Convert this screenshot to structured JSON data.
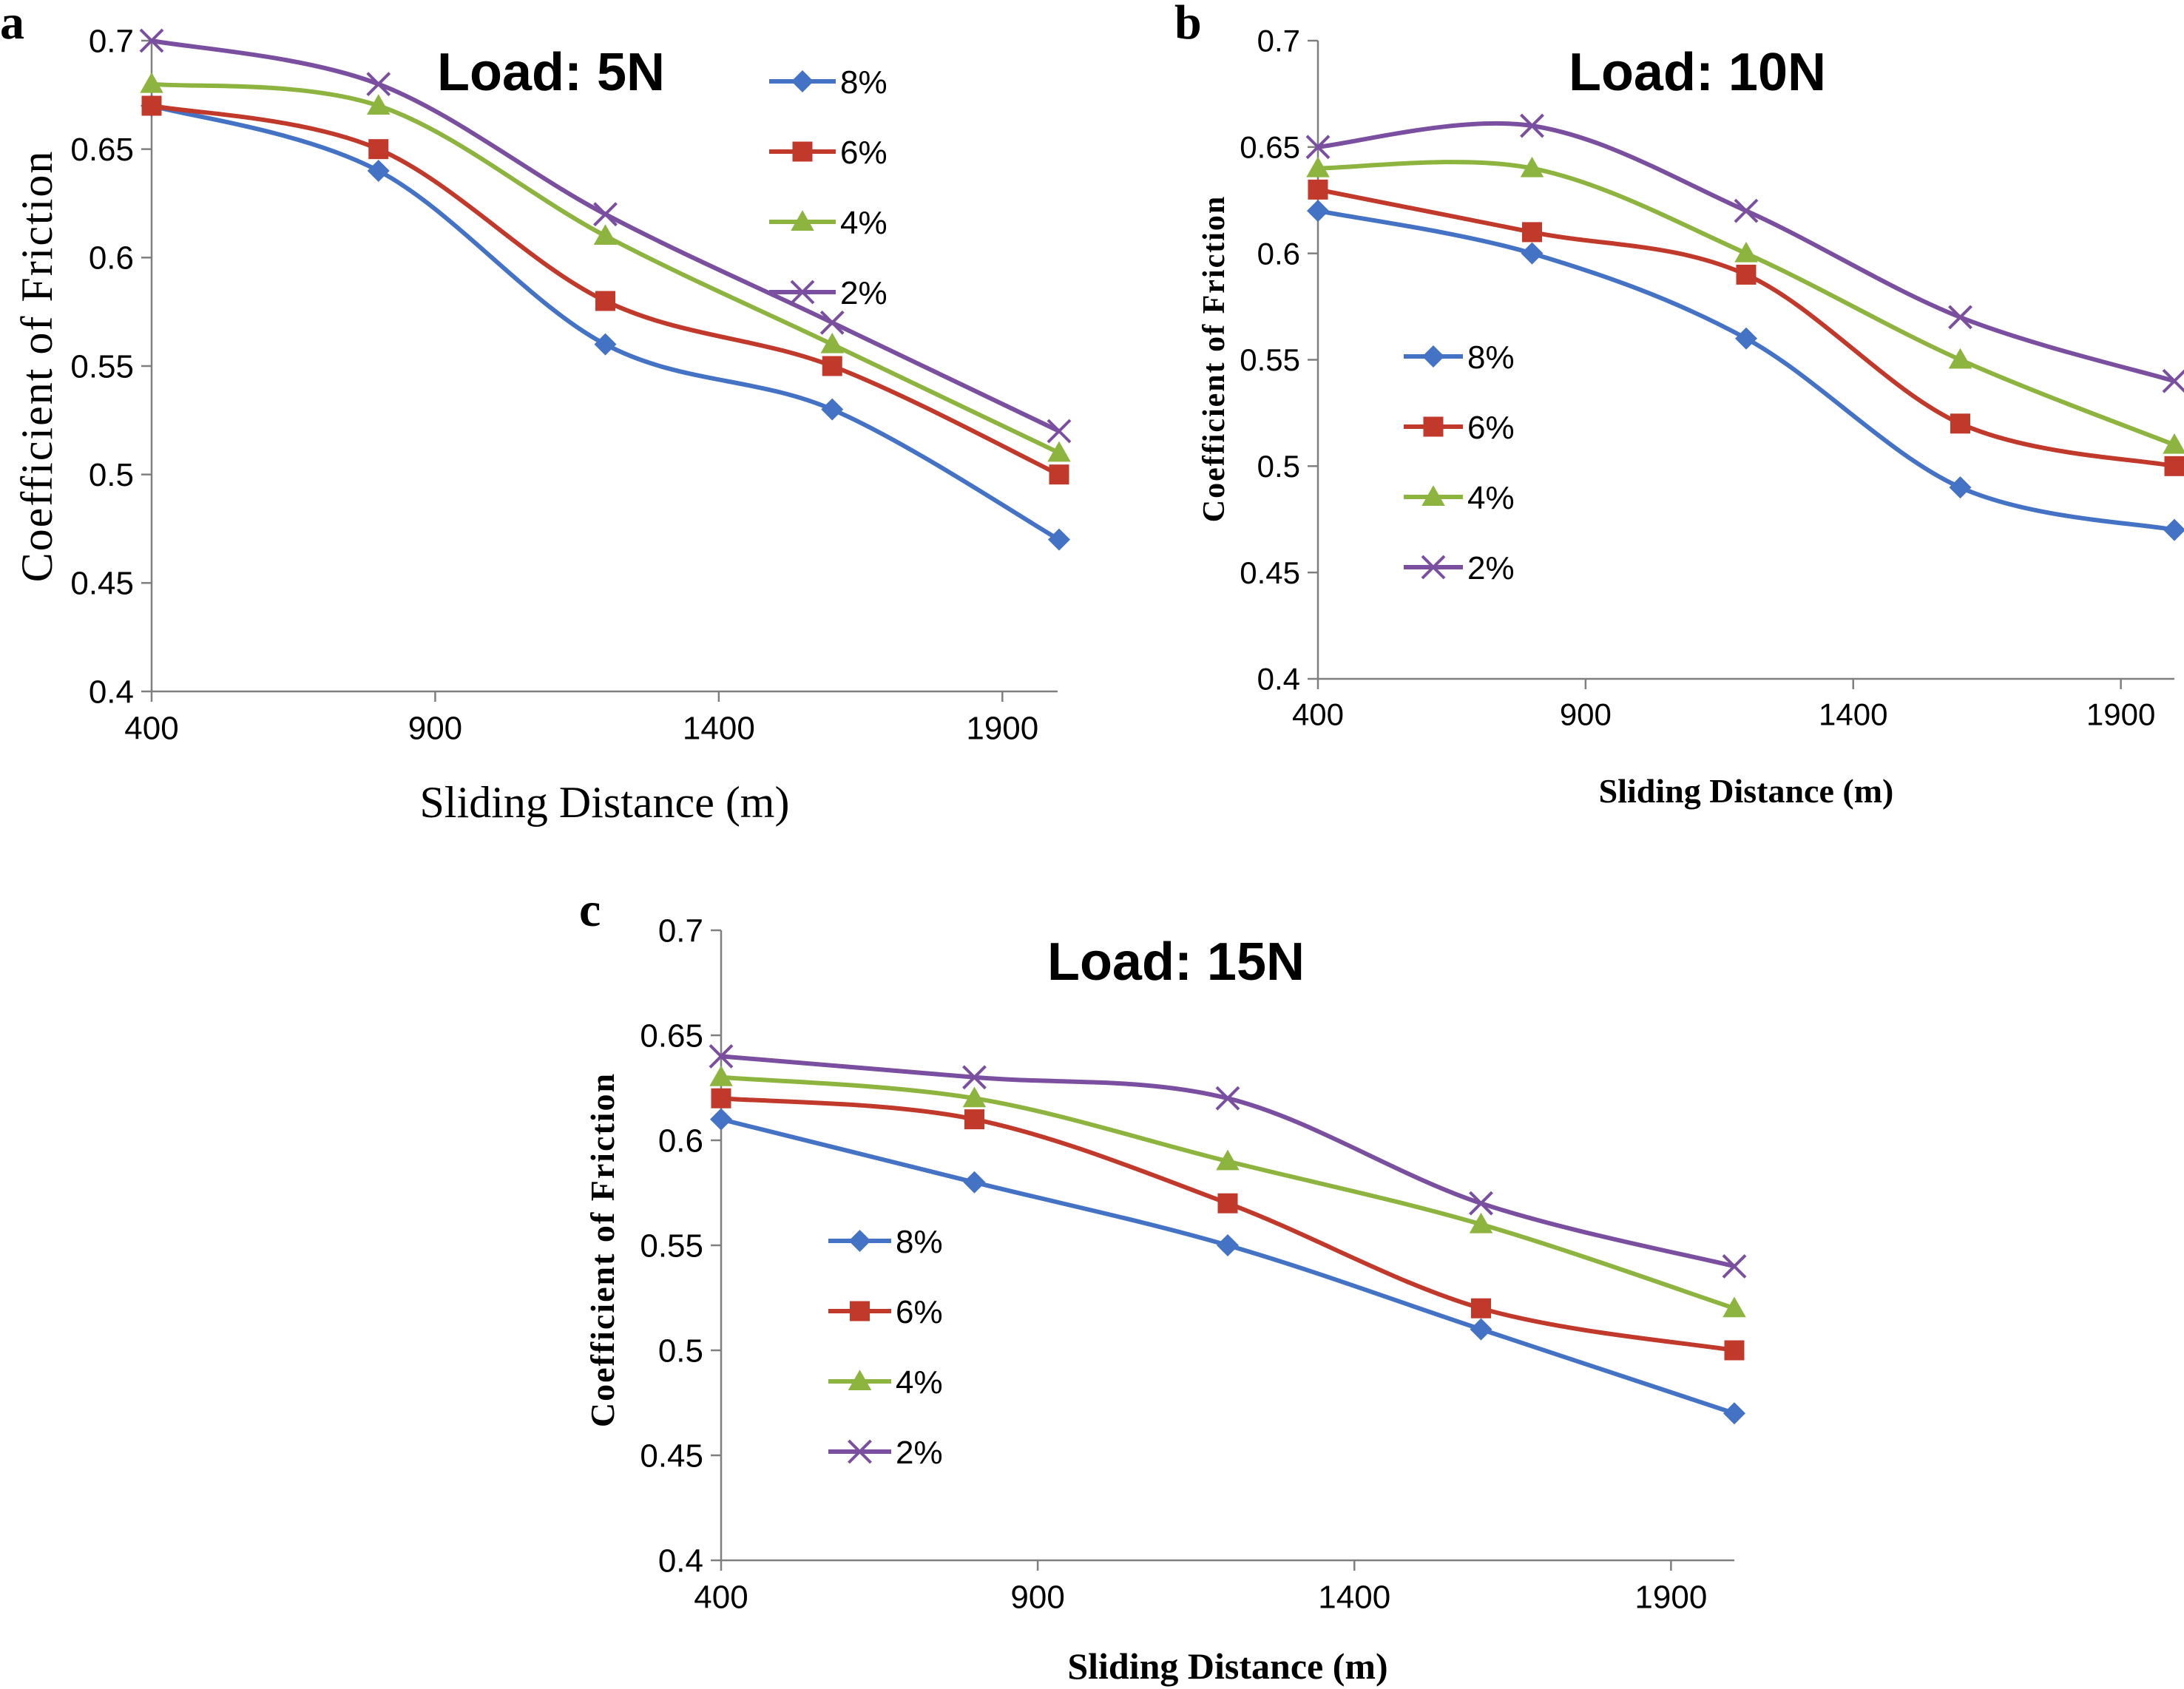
{
  "chart_data": [
    {
      "panel_label": "a",
      "type": "line",
      "title": "Load: 5N",
      "xlabel": "Sliding Distance (m)",
      "ylabel": "Coefficient of Friction",
      "x": [
        400,
        800,
        1200,
        1600,
        2000
      ],
      "xlim": [
        400,
        2000
      ],
      "ylim": [
        0.4,
        0.7
      ],
      "xticks": [
        "400",
        "900",
        "1400",
        "1900"
      ],
      "yticks": [
        "0.4",
        "0.45",
        "0.5",
        "0.55",
        "0.6",
        "0.65",
        "0.7"
      ],
      "legend_position": "top-right",
      "grid": false,
      "series": [
        {
          "name": "8%",
          "values": [
            0.67,
            0.64,
            0.56,
            0.53,
            0.47
          ],
          "color": "#4472C4",
          "marker": "diamond"
        },
        {
          "name": "6%",
          "values": [
            0.67,
            0.65,
            0.58,
            0.55,
            0.5
          ],
          "color": "#C0392B",
          "marker": "square"
        },
        {
          "name": "4%",
          "values": [
            0.68,
            0.67,
            0.61,
            0.56,
            0.51
          ],
          "color": "#8DB43E",
          "marker": "triangle"
        },
        {
          "name": "2%",
          "values": [
            0.7,
            0.68,
            0.62,
            0.57,
            0.52
          ],
          "color": "#7B4FA0",
          "marker": "x"
        }
      ]
    },
    {
      "panel_label": "b",
      "type": "line",
      "title": "Load: 10N",
      "xlabel": "Sliding Distance (m)",
      "ylabel": "Coefficient of Friction",
      "x": [
        400,
        800,
        1200,
        1600,
        2000
      ],
      "xlim": [
        400,
        2000
      ],
      "ylim": [
        0.4,
        0.7
      ],
      "xticks": [
        "400",
        "900",
        "1400",
        "1900"
      ],
      "yticks": [
        "0.4",
        "0.45",
        "0.5",
        "0.55",
        "0.6",
        "0.65",
        "0.7"
      ],
      "legend_position": "middle-left",
      "grid": false,
      "series": [
        {
          "name": "8%",
          "values": [
            0.62,
            0.6,
            0.56,
            0.49,
            0.47
          ],
          "color": "#4472C4",
          "marker": "diamond"
        },
        {
          "name": "6%",
          "values": [
            0.63,
            0.61,
            0.59,
            0.52,
            0.5
          ],
          "color": "#C0392B",
          "marker": "square"
        },
        {
          "name": "4%",
          "values": [
            0.64,
            0.64,
            0.6,
            0.55,
            0.51
          ],
          "color": "#8DB43E",
          "marker": "triangle"
        },
        {
          "name": "2%",
          "values": [
            0.65,
            0.66,
            0.62,
            0.57,
            0.54
          ],
          "color": "#7B4FA0",
          "marker": "x"
        }
      ]
    },
    {
      "panel_label": "c",
      "type": "line",
      "title": "Load: 15N",
      "xlabel": "Sliding Distance (m)",
      "ylabel": "Coefficient of Friction",
      "x": [
        400,
        800,
        1200,
        1600,
        2000
      ],
      "xlim": [
        400,
        2000
      ],
      "ylim": [
        0.4,
        0.7
      ],
      "xticks": [
        "400",
        "900",
        "1400",
        "1900"
      ],
      "yticks": [
        "0.4",
        "0.45",
        "0.5",
        "0.55",
        "0.6",
        "0.65",
        "0.7"
      ],
      "legend_position": "bottom-left",
      "grid": false,
      "series": [
        {
          "name": "8%",
          "values": [
            0.61,
            0.58,
            0.55,
            0.51,
            0.47
          ],
          "color": "#4472C4",
          "marker": "diamond"
        },
        {
          "name": "6%",
          "values": [
            0.62,
            0.61,
            0.57,
            0.52,
            0.5
          ],
          "color": "#C0392B",
          "marker": "square"
        },
        {
          "name": "4%",
          "values": [
            0.63,
            0.62,
            0.59,
            0.56,
            0.52
          ],
          "color": "#8DB43E",
          "marker": "triangle"
        },
        {
          "name": "2%",
          "values": [
            0.64,
            0.63,
            0.62,
            0.57,
            0.54
          ],
          "color": "#7B4FA0",
          "marker": "x"
        }
      ]
    }
  ]
}
